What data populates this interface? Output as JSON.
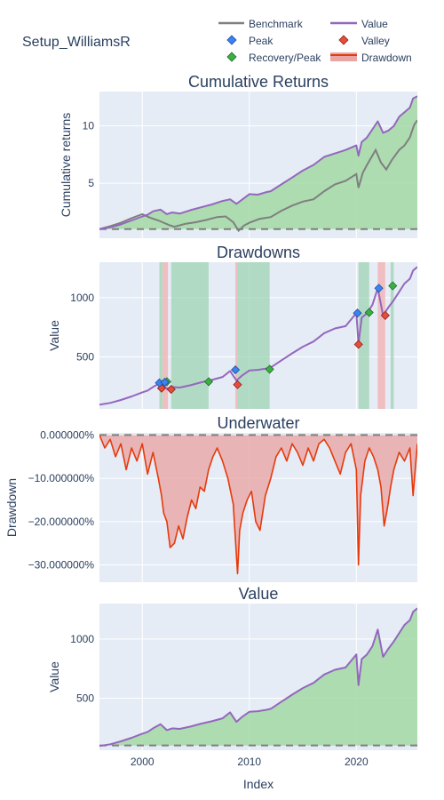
{
  "title": "Setup_WilliamsR",
  "legend": {
    "benchmark": "Benchmark",
    "value": "Value",
    "peak": "Peak",
    "valley": "Valley",
    "recovery": "Recovery/Peak",
    "drawdown": "Drawdown"
  },
  "colors": {
    "plot_bg": "#e5ecf6",
    "benchmark": "#7f7f7f",
    "value": "#9467bd",
    "value_fill": "#a3d9a5",
    "below_fill": "#e8a6a6",
    "peak": "#3b82f6",
    "valley": "#e74c3c",
    "recovery": "#3cb043",
    "drawdown_line": "#e63a0c",
    "recovery_band": "#9fd4b4",
    "decline_band": "#f2b6b6",
    "baseline": "#7f7f7f",
    "grid": "#ffffff"
  },
  "chart_data": [
    {
      "type": "line",
      "title": "Cumulative Returns",
      "ylabel": "Cumulative returns",
      "xlabel": "",
      "xlim": [
        1996,
        2025.7
      ],
      "ylim": [
        0.2,
        13.0
      ],
      "yticks": [
        5,
        10
      ],
      "xticks": [
        2000,
        2010,
        2020
      ],
      "grid": true,
      "baseline": 1.0,
      "series": [
        {
          "name": "Value",
          "x": [
            1996.0,
            1997.0,
            1998.0,
            1999.0,
            2000.0,
            2000.5,
            2001.0,
            2001.7,
            2002.3,
            2002.8,
            2003.5,
            2004.5,
            2005.5,
            2006.5,
            2007.5,
            2008.2,
            2008.8,
            2009.3,
            2010.0,
            2010.8,
            2011.5,
            2012.0,
            2013.0,
            2014.0,
            2015.0,
            2016.0,
            2017.0,
            2018.0,
            2019.0,
            2020.0,
            2020.2,
            2020.5,
            2021.0,
            2021.5,
            2022.0,
            2022.5,
            2023.0,
            2023.5,
            2024.0,
            2024.5,
            2025.0,
            2025.3,
            2025.7
          ],
          "y": [
            1.0,
            1.15,
            1.4,
            1.75,
            2.1,
            2.25,
            2.55,
            2.7,
            2.3,
            2.45,
            2.35,
            2.65,
            2.9,
            3.15,
            3.45,
            3.6,
            3.2,
            3.55,
            4.05,
            4.0,
            4.2,
            4.3,
            4.9,
            5.5,
            6.1,
            6.6,
            7.3,
            7.6,
            7.9,
            8.3,
            7.4,
            8.6,
            9.0,
            9.7,
            10.4,
            9.4,
            9.6,
            10.0,
            10.8,
            11.2,
            11.6,
            12.4,
            12.6
          ]
        },
        {
          "name": "Benchmark",
          "x": [
            1996.0,
            1997.0,
            1998.0,
            1999.0,
            2000.0,
            2000.7,
            2001.5,
            2002.5,
            2003.0,
            2004.0,
            2005.0,
            2006.0,
            2007.0,
            2007.8,
            2008.5,
            2009.0,
            2009.5,
            2010.0,
            2011.0,
            2012.0,
            2013.0,
            2014.0,
            2015.0,
            2016.0,
            2017.0,
            2018.0,
            2019.0,
            2020.0,
            2020.2,
            2020.6,
            2021.0,
            2021.8,
            2022.3,
            2022.8,
            2023.3,
            2024.0,
            2024.5,
            2025.0,
            2025.4,
            2025.7
          ],
          "y": [
            1.0,
            1.25,
            1.55,
            1.95,
            2.3,
            2.0,
            1.75,
            1.35,
            1.2,
            1.45,
            1.6,
            1.8,
            2.05,
            2.1,
            1.6,
            0.85,
            1.3,
            1.55,
            1.9,
            2.05,
            2.6,
            3.05,
            3.4,
            3.6,
            4.3,
            4.9,
            5.2,
            5.8,
            4.6,
            5.9,
            6.6,
            7.9,
            6.8,
            6.2,
            7.0,
            7.9,
            8.3,
            9.0,
            10.1,
            10.5
          ]
        }
      ]
    },
    {
      "type": "line",
      "title": "Drawdowns",
      "ylabel": "Value",
      "xlim": [
        1996,
        2025.7
      ],
      "ylim": [
        60,
        1300
      ],
      "yticks": [
        500,
        1000
      ],
      "xticks": [
        2000,
        2010,
        2020
      ],
      "grid": true,
      "series": [
        {
          "name": "Value",
          "x": [
            1996.0,
            1997.0,
            1998.0,
            1999.0,
            2000.0,
            2000.5,
            2001.0,
            2001.7,
            2002.3,
            2002.8,
            2003.5,
            2004.5,
            2005.5,
            2006.5,
            2007.5,
            2008.2,
            2008.8,
            2009.3,
            2010.0,
            2010.8,
            2011.5,
            2012.0,
            2013.0,
            2014.0,
            2015.0,
            2016.0,
            2017.0,
            2018.0,
            2019.0,
            2020.0,
            2020.2,
            2020.5,
            2021.0,
            2021.5,
            2022.0,
            2022.5,
            2023.0,
            2023.5,
            2024.0,
            2024.5,
            2025.0,
            2025.3,
            2025.7
          ],
          "y": [
            95,
            110,
            135,
            165,
            200,
            215,
            245,
            280,
            230,
            245,
            240,
            260,
            285,
            305,
            330,
            380,
            300,
            340,
            385,
            390,
            400,
            410,
            470,
            530,
            585,
            630,
            700,
            740,
            760,
            870,
            610,
            830,
            870,
            940,
            1080,
            850,
            920,
            980,
            1050,
            1120,
            1160,
            1230,
            1260
          ]
        }
      ],
      "recovery_bands": [
        [
          2001.6,
          2001.9
        ],
        [
          2002.7,
          2006.2
        ],
        [
          2008.9,
          2011.9
        ],
        [
          2020.2,
          2021.2
        ],
        [
          2023.2,
          2023.5
        ]
      ],
      "decline_bands": [
        [
          2001.9,
          2002.4
        ],
        [
          2008.7,
          2008.9
        ],
        [
          2022.0,
          2022.7
        ]
      ],
      "markers": {
        "peak": [
          [
            2001.6,
            280
          ],
          [
            2002.1,
            285
          ],
          [
            2008.7,
            390
          ],
          [
            2020.1,
            870
          ],
          [
            2022.1,
            1080
          ]
        ],
        "valley": [
          [
            2001.8,
            235
          ],
          [
            2002.7,
            225
          ],
          [
            2008.9,
            265
          ],
          [
            2020.2,
            605
          ],
          [
            2022.7,
            850
          ]
        ],
        "recovery": [
          [
            2002.3,
            290
          ],
          [
            2006.2,
            290
          ],
          [
            2011.9,
            395
          ],
          [
            2021.2,
            875
          ],
          [
            2023.4,
            1100
          ]
        ]
      }
    },
    {
      "type": "area",
      "title": "Underwater",
      "ylabel": "Drawdown",
      "xlim": [
        1996,
        2025.7
      ],
      "ylim": [
        -34,
        0.5
      ],
      "yticks": [
        0,
        -10,
        -20,
        -30
      ],
      "ytick_labels": [
        "0.000000%",
        "−10.000000%",
        "−20.000000%",
        "−30.000000%"
      ],
      "xticks": [
        2000,
        2010,
        2020
      ],
      "grid": true,
      "baseline": 0,
      "series": [
        {
          "name": "Drawdown",
          "x": [
            1996.0,
            1996.5,
            1997.0,
            1997.5,
            1998.0,
            1998.5,
            1999.0,
            1999.5,
            2000.0,
            2000.5,
            2001.0,
            2001.5,
            2001.8,
            2002.0,
            2002.3,
            2002.6,
            2003.0,
            2003.4,
            2003.8,
            2004.2,
            2004.6,
            2005.0,
            2005.4,
            2005.8,
            2006.2,
            2006.6,
            2007.0,
            2007.5,
            2008.0,
            2008.5,
            2008.7,
            2008.9,
            2009.1,
            2009.4,
            2009.8,
            2010.2,
            2010.6,
            2011.0,
            2011.5,
            2012.0,
            2012.5,
            2013.0,
            2013.5,
            2014.0,
            2014.5,
            2015.0,
            2015.5,
            2016.0,
            2016.5,
            2017.0,
            2017.5,
            2018.0,
            2018.5,
            2019.0,
            2019.5,
            2020.0,
            2020.2,
            2020.4,
            2020.8,
            2021.2,
            2021.6,
            2022.0,
            2022.3,
            2022.6,
            2022.9,
            2023.2,
            2023.5,
            2024.0,
            2024.5,
            2025.0,
            2025.3,
            2025.7
          ],
          "y": [
            0,
            -3,
            -1,
            -5,
            -2,
            -8,
            -3,
            -6,
            -2,
            -9,
            -4,
            -10,
            -14,
            -18,
            -20,
            -26,
            -25,
            -21,
            -24,
            -19,
            -15,
            -17,
            -12,
            -13,
            -8,
            -5,
            -3,
            -6,
            -10,
            -16,
            -24,
            -32,
            -22,
            -18,
            -15,
            -13,
            -20,
            -22,
            -14,
            -10,
            -5,
            -3,
            -6,
            -2,
            -4,
            -7,
            -3,
            -6,
            -2,
            -1,
            -3,
            -6,
            -9,
            -4,
            -2,
            -8,
            -30,
            -14,
            -6,
            -3,
            -5,
            -8,
            -12,
            -21,
            -17,
            -12,
            -8,
            -4,
            -6,
            -3,
            -14,
            -2
          ]
        }
      ]
    },
    {
      "type": "area",
      "title": "Value",
      "ylabel": "Value",
      "xlabel": "Index",
      "xlim": [
        1996,
        2025.7
      ],
      "ylim": [
        60,
        1300
      ],
      "yticks": [
        500,
        1000
      ],
      "xticks": [
        2000,
        2010,
        2020
      ],
      "grid": true,
      "baseline": 100,
      "series": [
        {
          "name": "Value",
          "x": [
            1996.0,
            1997.0,
            1998.0,
            1999.0,
            2000.0,
            2000.5,
            2001.0,
            2001.7,
            2002.3,
            2002.8,
            2003.5,
            2004.5,
            2005.5,
            2006.5,
            2007.5,
            2008.2,
            2008.8,
            2009.3,
            2010.0,
            2010.8,
            2011.5,
            2012.0,
            2013.0,
            2014.0,
            2015.0,
            2016.0,
            2017.0,
            2018.0,
            2019.0,
            2020.0,
            2020.2,
            2020.5,
            2021.0,
            2021.5,
            2022.0,
            2022.5,
            2023.0,
            2023.5,
            2024.0,
            2024.5,
            2025.0,
            2025.3,
            2025.7
          ],
          "y": [
            95,
            110,
            135,
            165,
            200,
            215,
            245,
            280,
            230,
            245,
            240,
            260,
            285,
            305,
            330,
            380,
            300,
            340,
            385,
            390,
            400,
            410,
            470,
            530,
            585,
            630,
            700,
            740,
            760,
            870,
            610,
            830,
            870,
            940,
            1080,
            850,
            920,
            980,
            1050,
            1120,
            1160,
            1230,
            1260
          ]
        }
      ]
    }
  ]
}
